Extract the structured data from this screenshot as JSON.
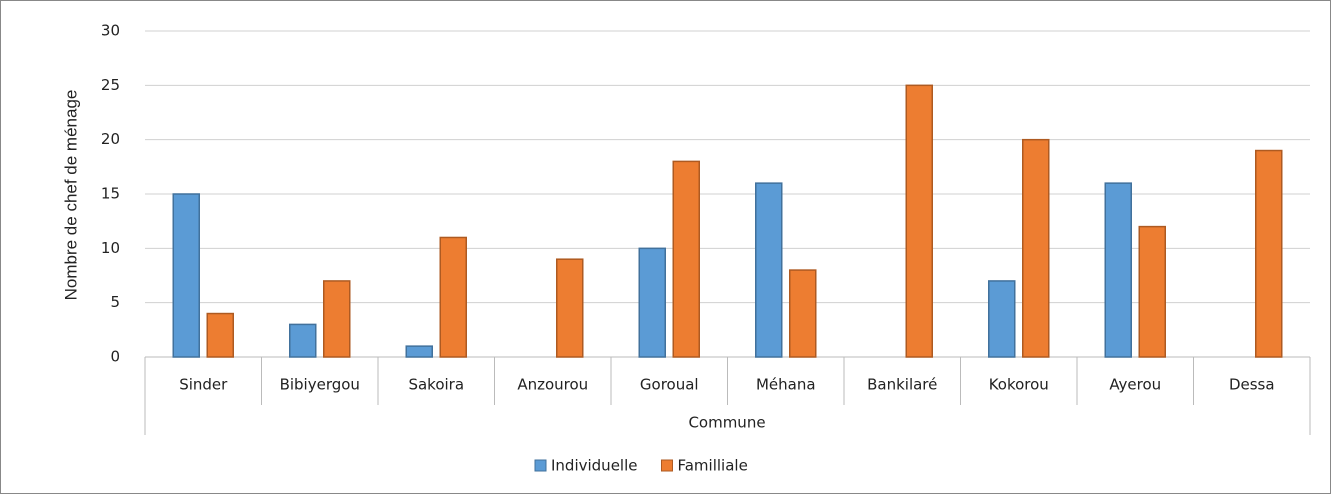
{
  "chart_data": {
    "type": "bar",
    "categories": [
      "Sinder",
      "Bibiyergou",
      "Sakoira",
      "Anzourou",
      "Goroual",
      "Méhana",
      "Bankilaré",
      "Kokorou",
      "Ayerou",
      "Dessa"
    ],
    "series": [
      {
        "name": "Individuelle",
        "color": "#5b9bd5",
        "values": [
          15,
          3,
          1,
          0,
          10,
          16,
          0,
          7,
          16,
          0
        ]
      },
      {
        "name": "Familliale",
        "color": "#ed7d31",
        "values": [
          4,
          7,
          11,
          9,
          18,
          8,
          25,
          20,
          12,
          19
        ]
      }
    ],
    "x_label": "Commune",
    "y_label": "Nombre de chef de ménage",
    "ylim": [
      0,
      30
    ],
    "yticks": [
      0,
      5,
      10,
      15,
      20,
      25,
      30
    ],
    "grid": true,
    "legend": "bottom"
  }
}
